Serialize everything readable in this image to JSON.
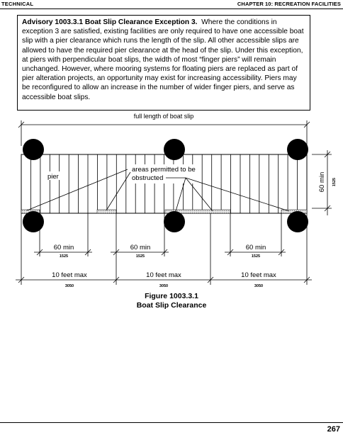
{
  "header": {
    "left": "TECHNICAL",
    "right": "CHAPTER 10: RECREATION FACILITIES"
  },
  "advisory": {
    "title": "Advisory 1003.3.1 Boat Slip Clearance Exception 3.",
    "body": "Where the conditions in exception 3 are satisfied, existing facilities are only required to have one accessible boat slip with a pier clearance which runs the length of the slip.  All other accessible slips are allowed to have the required pier clearance at the head of the slip.  Under this exception, at piers with perpendicular boat slips, the width of most “finger piers” will remain unchanged. However, where mooring systems for floating piers are replaced as part of pier alteration projects, an opportunity may exist for increasing accessibility.  Piers may be reconfigured to allow an increase in the number of wider finger piers, and serve as accessible boat slips."
  },
  "figure": {
    "label_full_length": "full length of boat slip",
    "label_pier": "pier",
    "label_areas_line1": "areas permitted to be",
    "label_areas_line2": "obstructed",
    "label_60min_vertical": "60 min",
    "label_1525_vertical": "1525",
    "dims_60min": [
      {
        "label": "60 min",
        "metric": "1525"
      },
      {
        "label": "60 min",
        "metric": "1525"
      },
      {
        "label": "60 min",
        "metric": "1525"
      }
    ],
    "dims_10ft": [
      {
        "label": "10 feet max",
        "metric": "3050"
      },
      {
        "label": "10 feet max",
        "metric": "3050"
      },
      {
        "label": "10 feet max",
        "metric": "3050"
      }
    ]
  },
  "caption": {
    "line1": "Figure 1003.3.1",
    "line2": "Boat Slip Clearance"
  },
  "page_number": "267"
}
